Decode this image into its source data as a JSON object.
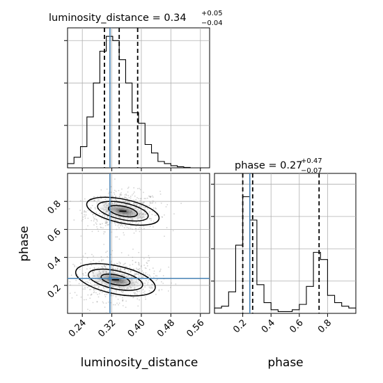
{
  "chart_data": [
    {
      "type": "histogram",
      "panel": "top-left",
      "title": "luminosity_distance = 0.34",
      "title_upper": "+0.05",
      "title_lower": "−0.04",
      "xlim": [
        0.2,
        0.585
      ],
      "grid": true,
      "bin_edges": [
        0.2,
        0.2175,
        0.235,
        0.2525,
        0.27,
        0.2875,
        0.305,
        0.3225,
        0.34,
        0.3575,
        0.375,
        0.3925,
        0.41,
        0.4275,
        0.445,
        0.4625,
        0.48,
        0.4975,
        0.515,
        0.5325,
        0.55,
        0.5675,
        0.585
      ],
      "counts": [
        2,
        5,
        10,
        24,
        40,
        55,
        62,
        60,
        51,
        40,
        26,
        21,
        11,
        7,
        3,
        2,
        1,
        0.5,
        0.2,
        0,
        0,
        0
      ],
      "quantile_lines": [
        0.3,
        0.34,
        0.39
      ],
      "truth": 0.315,
      "xticks": [
        "0.24",
        "0.32",
        "0.40",
        "0.48",
        "0.56"
      ]
    },
    {
      "type": "histogram",
      "panel": "bottom-right",
      "title": "phase = 0.27",
      "title_upper": "+0.47",
      "title_lower": "−0.07",
      "xlim": [
        0.0,
        1.0
      ],
      "grid": true,
      "bin_edges": [
        0.0,
        0.05,
        0.1,
        0.15,
        0.2,
        0.25,
        0.3,
        0.35,
        0.4,
        0.45,
        0.5,
        0.55,
        0.6,
        0.65,
        0.7,
        0.75,
        0.8,
        0.85,
        0.9,
        0.95,
        1.0
      ],
      "counts": [
        3,
        4,
        12,
        38,
        65,
        52,
        16,
        6,
        2,
        1,
        1,
        2,
        5,
        15,
        34,
        30,
        10,
        6,
        4,
        3
      ],
      "quantile_lines": [
        0.2,
        0.27,
        0.74
      ],
      "truth": 0.25,
      "xticks": [
        "0.2",
        "0.4",
        "0.6",
        "0.8"
      ],
      "xlabel": "phase"
    },
    {
      "type": "scatter",
      "panel": "bottom-left",
      "xlabel": "luminosity_distance",
      "ylabel": "phase",
      "xlim": [
        0.2,
        0.585
      ],
      "ylim": [
        0.0,
        1.0
      ],
      "grid": true,
      "xticks": [
        "0.24",
        "0.32",
        "0.40",
        "0.48",
        "0.56"
      ],
      "yticks": [
        "0.2",
        "0.4",
        "0.6",
        "0.8"
      ],
      "truth": {
        "x": 0.315,
        "y": 0.25
      },
      "modes": [
        {
          "center": [
            0.35,
            0.73
          ],
          "spread": [
            0.05,
            0.07
          ],
          "contours": [
            [
              0.35,
              0.73,
              0.04,
              0.035
            ],
            [
              0.35,
              0.73,
              0.07,
              0.06
            ],
            [
              0.35,
              0.73,
              0.1,
              0.085
            ]
          ]
        },
        {
          "center": [
            0.33,
            0.24
          ],
          "spread": [
            0.055,
            0.075
          ],
          "contours": [
            [
              0.33,
              0.24,
              0.04,
              0.035
            ],
            [
              0.33,
              0.24,
              0.075,
              0.065
            ],
            [
              0.33,
              0.24,
              0.11,
              0.1
            ]
          ]
        }
      ]
    }
  ],
  "colors": {
    "hist": "#000000",
    "truth": "#4682b4",
    "grid": "#b0b0b0",
    "points": "#9e9e9e",
    "density": "#6e6e6e"
  }
}
